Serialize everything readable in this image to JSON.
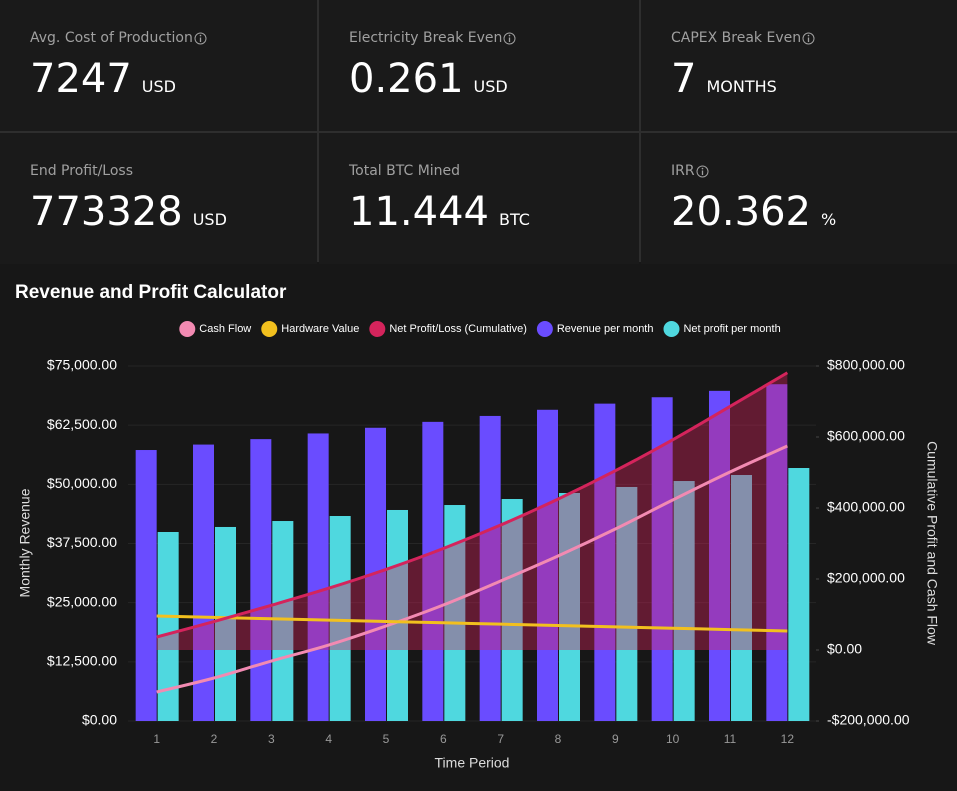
{
  "cards": [
    {
      "label": "Avg. Cost of Production",
      "value": 7247,
      "unit": "USD",
      "info": true
    },
    {
      "label": "Electricity Break Even",
      "value": 0.261,
      "unit": "USD",
      "info": true
    },
    {
      "label": "CAPEX Break Even",
      "value": 7,
      "unit": "MONTHS",
      "info": true
    },
    {
      "label": "End Profit/Loss",
      "value": 773328,
      "unit": "USD",
      "info": false
    },
    {
      "label": "Total BTC Mined",
      "value": 11.444,
      "unit": "BTC",
      "info": false
    },
    {
      "label": "IRR",
      "value": 20.362,
      "unit": "%",
      "info": true
    }
  ],
  "chart_data": {
    "type": "combo",
    "title": "Revenue and Profit Calculator",
    "x_label": "Time Period",
    "y_label": "Monthly Revenue",
    "y2_label": "Cumulative Profit and Cash Flow",
    "categories": [
      1,
      2,
      3,
      4,
      5,
      6,
      7,
      8,
      9,
      10,
      11,
      12
    ],
    "ylim": [
      0,
      75000
    ],
    "yticks": [
      {
        "value": 0,
        "label": "$0.00"
      },
      {
        "value": 12500,
        "label": "$12,500.00"
      },
      {
        "value": 25000,
        "label": "$25,000.00"
      },
      {
        "value": 37500,
        "label": "$37,500.00"
      },
      {
        "value": 50000,
        "label": "$50,000.00"
      },
      {
        "value": 62500,
        "label": "$62,500.00"
      },
      {
        "value": 75000,
        "label": "$75,000.00"
      }
    ],
    "y2lim": [
      -200000,
      800000
    ],
    "y2ticks": [
      {
        "value": -200000,
        "label": "-$200,000.00"
      },
      {
        "value": 0,
        "label": "$0.00"
      },
      {
        "value": 200000,
        "label": "$200,000.00"
      },
      {
        "value": 400000,
        "label": "$400,000.00"
      },
      {
        "value": 600000,
        "label": "$600,000.00"
      },
      {
        "value": 800000,
        "label": "$800,000.00"
      }
    ],
    "grid": true,
    "legend": "top",
    "series": [
      {
        "name": "Cash Flow",
        "type": "line",
        "axis": "y2",
        "color": "#f28ab2",
        "values": [
          -118300,
          -78900,
          -31000,
          14000,
          67600,
          126800,
          194400,
          264800,
          340800,
          422500,
          501400,
          574600
        ]
      },
      {
        "name": "Hardware Value",
        "type": "line",
        "axis": "y2",
        "color": "#f2c01e",
        "values": [
          95800,
          91900,
          88000,
          84200,
          80400,
          76600,
          72800,
          69000,
          65200,
          61300,
          57400,
          53500
        ]
      },
      {
        "name": "Net Profit/Loss (Cumulative)",
        "type": "line",
        "axis": "y2",
        "color": "#d4245c",
        "fill": true,
        "values": [
          36600,
          80000,
          126000,
          174000,
          227000,
          286000,
          352000,
          425000,
          505000,
          592000,
          686000,
          781000
        ]
      },
      {
        "name": "Revenue per month",
        "type": "bar",
        "color": "#6a4cff",
        "values": [
          57250,
          58400,
          59550,
          60750,
          61950,
          63200,
          64450,
          65750,
          67050,
          68400,
          69750,
          71150
        ]
      },
      {
        "name": "Net profit per month",
        "type": "bar",
        "color": "#4fd8df",
        "values": [
          39930,
          40990,
          42250,
          43310,
          44580,
          45630,
          46900,
          48170,
          49440,
          50700,
          51970,
          53450
        ]
      }
    ]
  }
}
